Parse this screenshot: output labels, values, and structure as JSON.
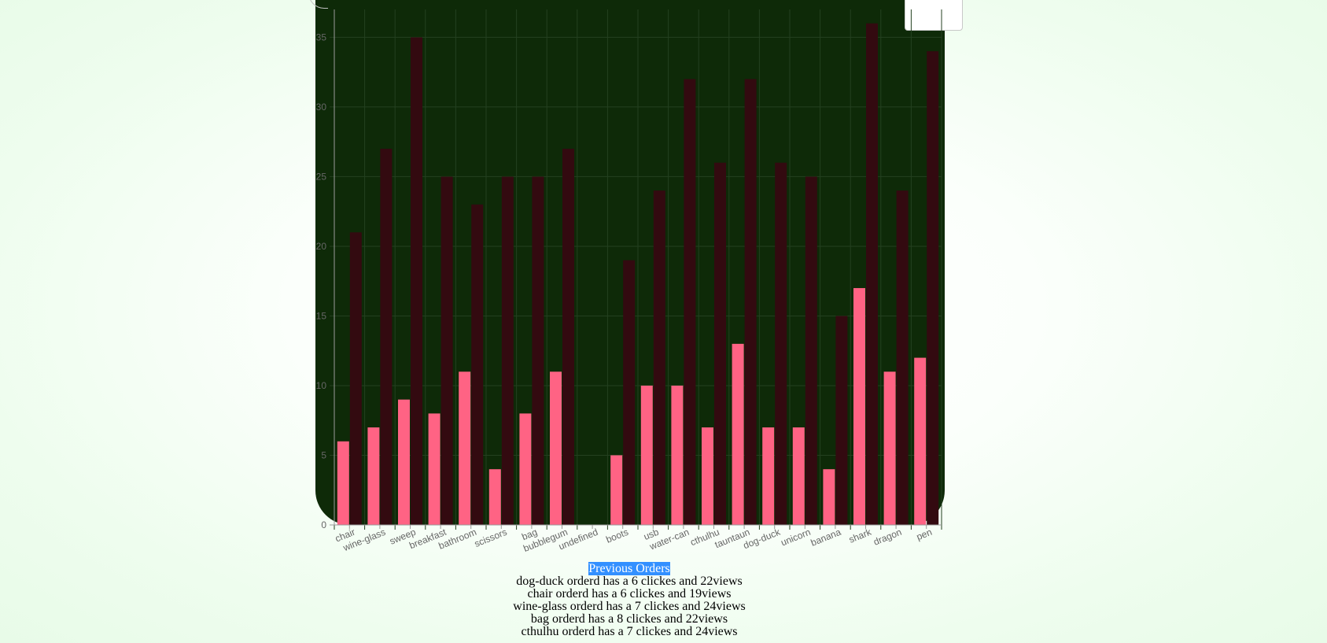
{
  "chart_data": {
    "type": "bar",
    "categories": [
      "chair",
      "wine-glass",
      "sweep",
      "breakfast",
      "bathroom",
      "scissors",
      "bag",
      "bubblegum",
      "undefined",
      "boots",
      "usb",
      "water-can",
      "cthulhu",
      "tauntaun",
      "dog-duck",
      "unicorn",
      "banana",
      "shark",
      "dragon",
      "pen"
    ],
    "series": [
      {
        "values": [
          6,
          7,
          9,
          8,
          11,
          4,
          8,
          11,
          0,
          5,
          10,
          10,
          7,
          13,
          7,
          7,
          4,
          17,
          11,
          12
        ],
        "color": "#ff6384"
      },
      {
        "values": [
          21,
          27,
          35,
          25,
          23,
          25,
          25,
          27,
          0,
          19,
          24,
          32,
          26,
          32,
          26,
          25,
          15,
          36,
          24,
          34
        ],
        "color": "#330a10"
      }
    ],
    "ylim": [
      0,
      37
    ],
    "yticks": [
      0,
      5,
      10,
      15,
      20,
      25,
      30,
      35
    ],
    "grid": true,
    "colors": {
      "panel": "#0e2a08",
      "grid": "#244020",
      "tick_text": "#666666"
    }
  },
  "orders": {
    "title": "Previous Orders",
    "items": [
      "dog-duck orderd has a 6 clickes and 22views",
      "chair orderd has a 6 clickes and 19views",
      "wine-glass orderd has a 7 clickes and 24views",
      "bag orderd has a 8 clickes and 22views",
      "cthulhu orderd has a 7 clickes and 24views"
    ]
  }
}
